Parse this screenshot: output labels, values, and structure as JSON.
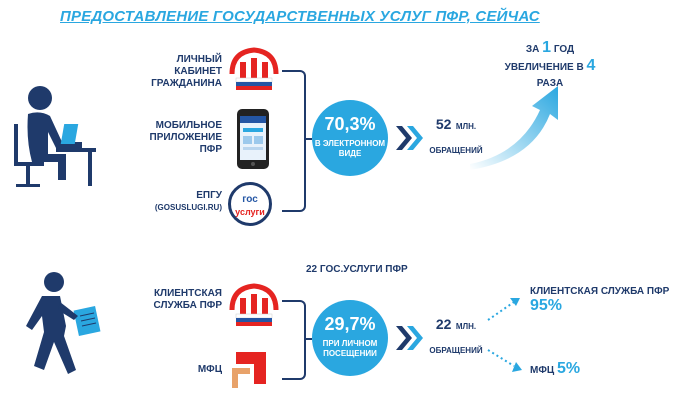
{
  "title": "ПРЕДОСТАВЛЕНИЕ ГОСУДАРСТВЕННЫХ УСЛУГ ПФР, СЕЙЧАС",
  "online": {
    "channels": [
      {
        "label_line1": "ЛИЧНЫЙ КАБИНЕТ",
        "label_line2": "ГРАЖДАНИНА",
        "icon": "pfr-logo-icon"
      },
      {
        "label_line1": "МОБИЛЬНОЕ",
        "label_line2": "ПРИЛОЖЕНИЕ ПФР",
        "icon": "smartphone-icon"
      },
      {
        "label_line1": "ЕПГУ",
        "label_line2": "(GOSUSLUGI.RU)",
        "icon": "gosuslugi-logo-icon"
      }
    ],
    "gosuslugi_logo_line1": "гос",
    "gosuslugi_logo_line2": "услуги",
    "circle_value": "70,3%",
    "circle_line1": "В ЭЛЕКТРОННОМ",
    "circle_line2": "ВИДЕ",
    "requests_value": "52",
    "requests_unit": "МЛН.",
    "requests_caption": "ОБРАЩЕНИЙ",
    "growth_prefix": "ЗА",
    "growth_year_num": "1",
    "growth_year_word": "ГОД",
    "growth_line2_prefix": "УВЕЛИЧЕНИЕ В",
    "growth_times_num": "4",
    "growth_times_word": "РАЗА",
    "arrow_color": "#2aa7e0"
  },
  "offline": {
    "services_title": "22 ГОС.УСЛУГИ ПФР",
    "channels": [
      {
        "label_line1": "КЛИЕНТСКАЯ",
        "label_line2": "СЛУЖБА ПФР",
        "icon": "pfr-logo-icon"
      },
      {
        "label_line1": "МФЦ",
        "label_line2": "",
        "icon": "mfc-logo-icon"
      }
    ],
    "circle_value": "29,7%",
    "circle_line1": "ПРИ ЛИЧНОМ",
    "circle_line2": "ПОСЕЩЕНИИ",
    "requests_value": "22",
    "requests_unit": "МЛН.",
    "requests_caption": "ОБРАЩЕНИЙ",
    "share_pfr_label": "КЛИЕНТСКАЯ СЛУЖБА ПФР",
    "share_pfr_value": "95%",
    "share_mfc_label": "МФЦ",
    "share_mfc_value": "5%"
  },
  "colors": {
    "accent": "#2aa7e0",
    "navy": "#1f3a6b",
    "pfr_red": "#e52421"
  }
}
